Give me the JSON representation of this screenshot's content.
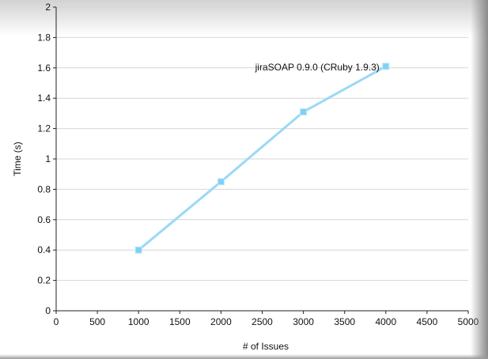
{
  "chart_data": {
    "type": "line",
    "xlabel": "# of Issues",
    "ylabel": "Time (s)",
    "xlim": [
      0,
      5000
    ],
    "ylim": [
      0,
      2
    ],
    "x_ticks": [
      "0",
      "500",
      "1000",
      "1500",
      "2000",
      "2500",
      "3000",
      "3500",
      "4000",
      "4500",
      "5000"
    ],
    "y_ticks": [
      "0",
      "0.2",
      "0.4",
      "0.6",
      "0.8",
      "1",
      "1.2",
      "1.4",
      "1.6",
      "1.8",
      "2"
    ],
    "grid": true,
    "series": [
      {
        "name": "jiraSOAP 0.9.0 (CRuby 1.9.3)",
        "color": "#9ad9f5",
        "marker_color": "#7fd0f5",
        "x": [
          1000,
          2000,
          3000,
          4000
        ],
        "y": [
          0.4,
          0.85,
          1.31,
          1.61
        ]
      }
    ]
  }
}
